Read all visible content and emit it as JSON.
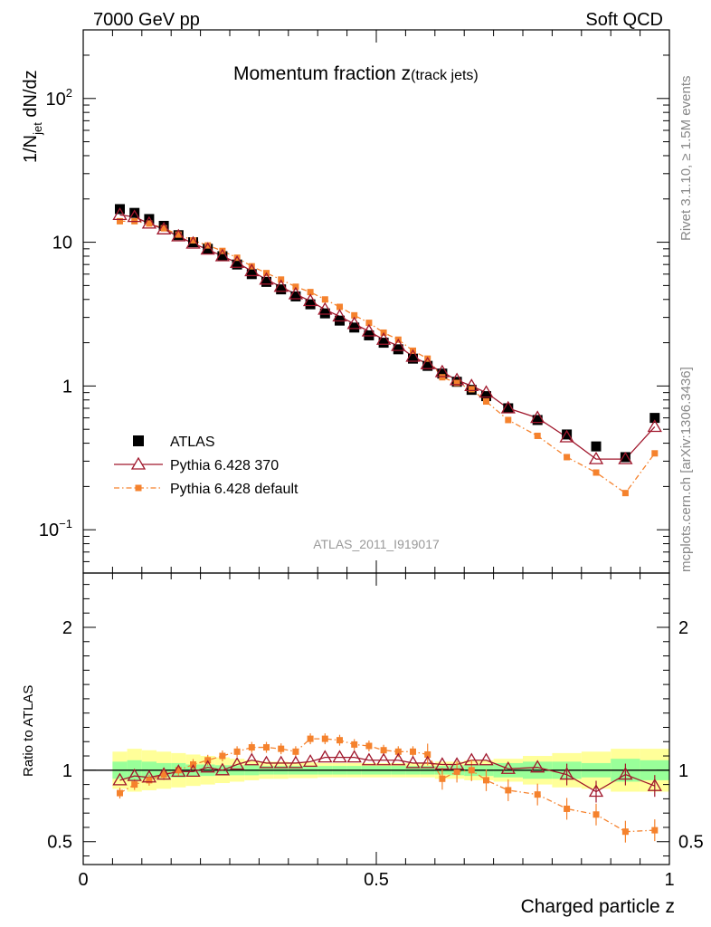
{
  "header": {
    "energy": "7000 GeV pp",
    "category": "Soft QCD"
  },
  "side_text": {
    "rivet": "Rivet 3.1.10, ≥ 1.5M events",
    "source": "mcplots.cern.ch [arXiv:1306.3436]"
  },
  "analysis_id": "ATLAS_2011_I919017",
  "chart_data": {
    "type": "scatter",
    "title_main": "Momentum fraction ",
    "title_z": "z",
    "title_sub": "(track jets)",
    "xlabel": "Charged particle z",
    "ylabel_main": "1/N",
    "ylabel_sub": "jet",
    "ylabel_rest": " dN/dz",
    "ratio_ylabel": "Ratio to ATLAS",
    "xlim": [
      0,
      1
    ],
    "ylim": [
      0.05,
      300
    ],
    "yscale": "log",
    "ratio_ylim": [
      0.34,
      2.38
    ],
    "x_ticks": [
      {
        "v": 0,
        "label": "0"
      },
      {
        "v": 0.5,
        "label": "0.5"
      },
      {
        "v": 1,
        "label": "1"
      }
    ],
    "y_ticks": [
      {
        "v": 0.1,
        "base": "10",
        "exp": "−1"
      },
      {
        "v": 1,
        "base": "1",
        "exp": ""
      },
      {
        "v": 10,
        "base": "10",
        "exp": ""
      },
      {
        "v": 100,
        "base": "10",
        "exp": "2"
      }
    ],
    "ratio_y_ticks": [
      {
        "v": 0.5,
        "label": "0.5"
      },
      {
        "v": 1,
        "label": "1"
      },
      {
        "v": 2,
        "label": "2"
      }
    ],
    "legend": [
      {
        "label": "ATLAS",
        "color": "#000000",
        "marker": "square"
      },
      {
        "label": "Pythia 6.428 370",
        "color": "#a0172c",
        "marker": "triangle"
      },
      {
        "label": "Pythia 6.428 default",
        "color": "#f5822d",
        "marker": "square-dash"
      }
    ],
    "bins": [
      {
        "lo": 0.05,
        "hi": 0.075
      },
      {
        "lo": 0.075,
        "hi": 0.1
      },
      {
        "lo": 0.1,
        "hi": 0.125
      },
      {
        "lo": 0.125,
        "hi": 0.15
      },
      {
        "lo": 0.15,
        "hi": 0.175
      },
      {
        "lo": 0.175,
        "hi": 0.2
      },
      {
        "lo": 0.2,
        "hi": 0.225
      },
      {
        "lo": 0.225,
        "hi": 0.25
      },
      {
        "lo": 0.25,
        "hi": 0.275
      },
      {
        "lo": 0.275,
        "hi": 0.3
      },
      {
        "lo": 0.3,
        "hi": 0.325
      },
      {
        "lo": 0.325,
        "hi": 0.35
      },
      {
        "lo": 0.35,
        "hi": 0.375
      },
      {
        "lo": 0.375,
        "hi": 0.4
      },
      {
        "lo": 0.4,
        "hi": 0.425
      },
      {
        "lo": 0.425,
        "hi": 0.45
      },
      {
        "lo": 0.45,
        "hi": 0.475
      },
      {
        "lo": 0.475,
        "hi": 0.5
      },
      {
        "lo": 0.5,
        "hi": 0.525
      },
      {
        "lo": 0.525,
        "hi": 0.55
      },
      {
        "lo": 0.55,
        "hi": 0.575
      },
      {
        "lo": 0.575,
        "hi": 0.6
      },
      {
        "lo": 0.6,
        "hi": 0.625
      },
      {
        "lo": 0.625,
        "hi": 0.65
      },
      {
        "lo": 0.65,
        "hi": 0.675
      },
      {
        "lo": 0.675,
        "hi": 0.7
      },
      {
        "lo": 0.7,
        "hi": 0.75
      },
      {
        "lo": 0.75,
        "hi": 0.8
      },
      {
        "lo": 0.8,
        "hi": 0.85
      },
      {
        "lo": 0.85,
        "hi": 0.9
      },
      {
        "lo": 0.9,
        "hi": 0.95
      },
      {
        "lo": 0.95,
        "hi": 1.0
      }
    ],
    "atlas": [
      17.0,
      16.0,
      14.5,
      13.0,
      11.2,
      10.0,
      9.0,
      8.0,
      7.0,
      6.0,
      5.3,
      4.7,
      4.2,
      3.7,
      3.2,
      2.85,
      2.55,
      2.25,
      2.0,
      1.8,
      1.55,
      1.38,
      1.22,
      1.07,
      0.94,
      0.85,
      0.7,
      0.58,
      0.46,
      0.38,
      0.32,
      0.6
    ],
    "pythia370": [
      15.5,
      15.0,
      13.5,
      12.3,
      11.0,
      9.8,
      8.9,
      8.0,
      7.2,
      6.3,
      5.5,
      4.9,
      4.35,
      3.9,
      3.4,
      3.05,
      2.7,
      2.4,
      2.1,
      1.9,
      1.6,
      1.42,
      1.25,
      1.1,
      1.0,
      0.9,
      0.7,
      0.6,
      0.44,
      0.31,
      0.31,
      0.52
    ],
    "pythia_default": [
      14.0,
      14.0,
      13.5,
      12.5,
      11.3,
      10.3,
      9.5,
      8.7,
      7.8,
      6.8,
      6.1,
      5.5,
      4.9,
      4.5,
      4.0,
      3.55,
      3.1,
      2.75,
      2.35,
      2.1,
      1.76,
      1.55,
      1.15,
      1.05,
      0.95,
      0.78,
      0.58,
      0.45,
      0.32,
      0.25,
      0.18,
      0.34
    ],
    "ratio_pythia370": [
      0.93,
      0.96,
      0.95,
      0.97,
      0.99,
      0.99,
      1.02,
      1.0,
      1.04,
      1.07,
      1.05,
      1.05,
      1.05,
      1.06,
      1.09,
      1.09,
      1.09,
      1.07,
      1.07,
      1.07,
      1.05,
      1.05,
      1.04,
      1.04,
      1.07,
      1.07,
      1.01,
      1.02,
      0.97,
      0.85,
      0.97,
      0.89
    ],
    "ratio_pythia_default": [
      0.84,
      0.9,
      0.93,
      0.97,
      1.0,
      1.04,
      1.07,
      1.1,
      1.13,
      1.16,
      1.16,
      1.15,
      1.13,
      1.22,
      1.22,
      1.21,
      1.18,
      1.17,
      1.14,
      1.13,
      1.13,
      1.11,
      0.94,
      0.99,
      1.0,
      0.93,
      0.86,
      0.83,
      0.73,
      0.69,
      0.57,
      0.58
    ],
    "band_inner": [
      0.06,
      0.07,
      0.06,
      0.05,
      0.05,
      0.04,
      0.04,
      0.035,
      0.035,
      0.035,
      0.03,
      0.03,
      0.03,
      0.03,
      0.03,
      0.03,
      0.03,
      0.03,
      0.03,
      0.03,
      0.03,
      0.03,
      0.03,
      0.035,
      0.04,
      0.04,
      0.05,
      0.06,
      0.06,
      0.05,
      0.08,
      0.07
    ],
    "band_outer": [
      0.13,
      0.15,
      0.14,
      0.13,
      0.12,
      0.11,
      0.1,
      0.09,
      0.08,
      0.07,
      0.06,
      0.06,
      0.055,
      0.055,
      0.05,
      0.05,
      0.05,
      0.05,
      0.05,
      0.05,
      0.05,
      0.05,
      0.06,
      0.06,
      0.07,
      0.07,
      0.08,
      0.1,
      0.12,
      0.13,
      0.15,
      0.15
    ]
  }
}
